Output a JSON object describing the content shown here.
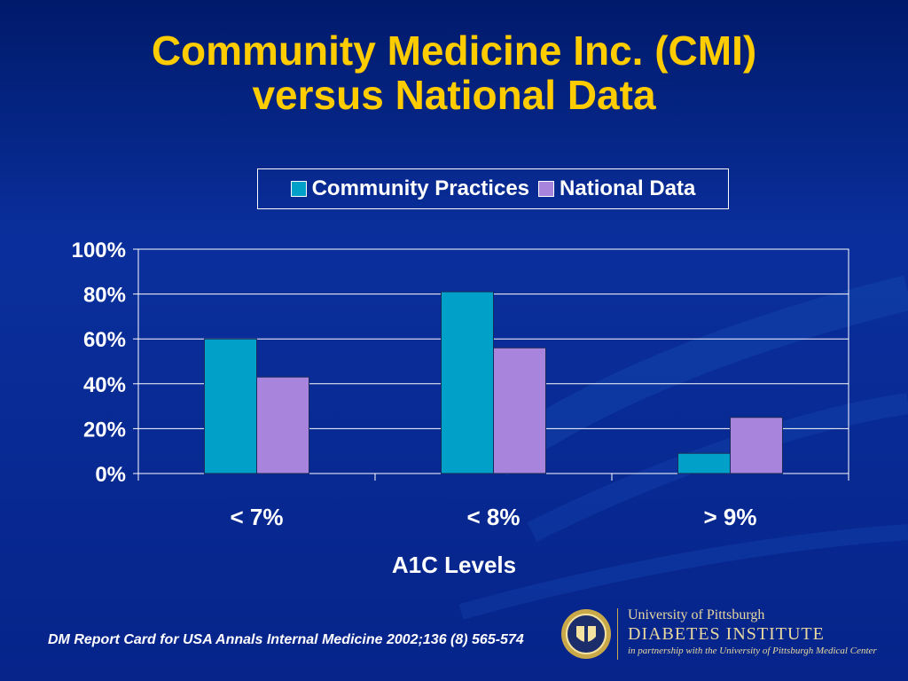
{
  "slide": {
    "title_line1": "Community Medicine Inc. (CMI)",
    "title_line2": "versus National Data",
    "citation": "DM Report Card for USA Annals Internal Medicine 2002;136 (8) 565-574"
  },
  "branding": {
    "university": "University of Pittsburgh",
    "institute": "DIABETES INSTITUTE",
    "tagline": "in partnership with the University of Pittsburgh Medical Center",
    "seal_icon": "university-seal-icon"
  },
  "colors": {
    "title": "#ffcc00",
    "series_community": "#00a0c8",
    "series_national": "#a884dc",
    "background": "#0a2f9c"
  },
  "chart_data": {
    "type": "bar",
    "categories": [
      "< 7%",
      "< 8%",
      "> 9%"
    ],
    "series": [
      {
        "name": "Community Practices",
        "values": [
          60,
          81,
          9
        ]
      },
      {
        "name": "National Data",
        "values": [
          43,
          56,
          25
        ]
      }
    ],
    "xlabel": "A1C Levels",
    "ylabel": "",
    "ylim": [
      0,
      100
    ],
    "yticks": [
      "0%",
      "20%",
      "40%",
      "60%",
      "80%",
      "100%"
    ],
    "grid": true,
    "legend_position": "top"
  }
}
